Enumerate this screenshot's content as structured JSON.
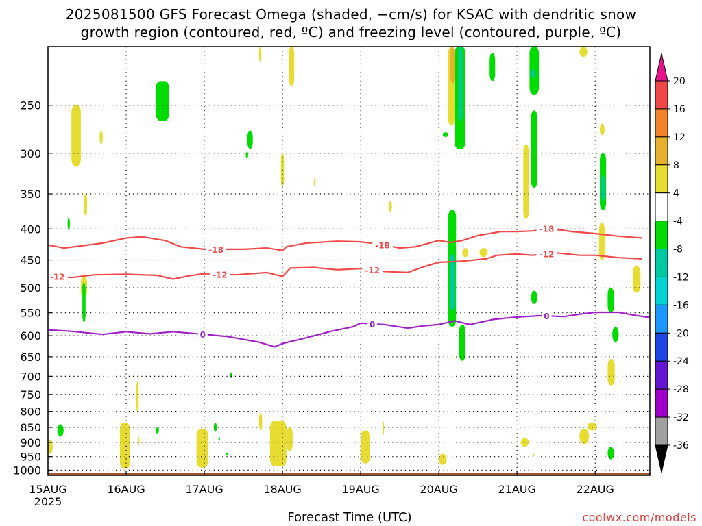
{
  "title": {
    "line1": "2025081500 GFS Forecast Omega (shaded, −cm/s) for KSAC with dendritic snow",
    "line2": "growth region (contoured, red, ºC) and freezing level (contoured, purple, ºC)"
  },
  "xlabel": "Forecast Time (UTC)",
  "credit": "coolwx.com/models",
  "colors": {
    "dgz_contour": "#f04848",
    "freezing_contour": "#a020c8",
    "terrain": "#a0522d",
    "grid": "#000000"
  },
  "chart_data": {
    "type": "heatmap",
    "x_unit": "days since 15AUG 00Z",
    "xlim": [
      0,
      7.7
    ],
    "x_ticks": [
      {
        "value": 0,
        "label": "15AUG",
        "sublabel": "2025"
      },
      {
        "value": 1,
        "label": "16AUG"
      },
      {
        "value": 2,
        "label": "17AUG"
      },
      {
        "value": 3,
        "label": "18AUG"
      },
      {
        "value": 4,
        "label": "19AUG"
      },
      {
        "value": 5,
        "label": "20AUG"
      },
      {
        "value": 6,
        "label": "21AUG"
      },
      {
        "value": 7,
        "label": "22AUG"
      }
    ],
    "y_ticks": [
      250,
      300,
      350,
      400,
      450,
      500,
      550,
      600,
      650,
      700,
      750,
      800,
      850,
      900,
      950,
      1000
    ],
    "ylim_hpa": [
      200,
      1020
    ],
    "y_scale": "log-pressure",
    "grid": true,
    "colorbar": {
      "ticks": [
        20,
        16,
        12,
        8,
        4,
        -4,
        -8,
        -12,
        -16,
        -20,
        -24,
        -28,
        -32,
        -36
      ],
      "bands": [
        {
          "range": [
            16,
            20
          ],
          "color": "#f04848"
        },
        {
          "range": [
            12,
            16
          ],
          "color": "#f08228"
        },
        {
          "range": [
            8,
            12
          ],
          "color": "#e6af2d"
        },
        {
          "range": [
            4,
            8
          ],
          "color": "#e6dc32"
        },
        {
          "range": [
            -4,
            4
          ],
          "color": "#ffffff"
        },
        {
          "range": [
            -8,
            -4
          ],
          "color": "#00dc00"
        },
        {
          "range": [
            -12,
            -8
          ],
          "color": "#00c8a0"
        },
        {
          "range": [
            -16,
            -12
          ],
          "color": "#00d2d2"
        },
        {
          "range": [
            -20,
            -16
          ],
          "color": "#1e96ff"
        },
        {
          "range": [
            -24,
            -20
          ],
          "color": "#1e46e6"
        },
        {
          "range": [
            -28,
            -24
          ],
          "color": "#6414d2"
        },
        {
          "range": [
            -32,
            -28
          ],
          "color": "#a000c8"
        },
        {
          "range": [
            -36,
            -32
          ],
          "color": "#a0a0a0"
        }
      ],
      "top_arrow_color": "#e6148c",
      "bottom_arrow_color": "#000000"
    },
    "contours": [
      {
        "name": "-18",
        "color": "#f04848",
        "points": [
          [
            0,
            425
          ],
          [
            0.2,
            430
          ],
          [
            0.4,
            427
          ],
          [
            0.7,
            422
          ],
          [
            1.0,
            414
          ],
          [
            1.2,
            412
          ],
          [
            1.5,
            418
          ],
          [
            1.7,
            428
          ],
          [
            2.0,
            432
          ],
          [
            2.5,
            432
          ],
          [
            2.8,
            430
          ],
          [
            3.0,
            434
          ],
          [
            3.05,
            428
          ],
          [
            3.3,
            422
          ],
          [
            3.7,
            419
          ],
          [
            4.0,
            420
          ],
          [
            4.2,
            423
          ],
          [
            4.5,
            430
          ],
          [
            4.7,
            428
          ],
          [
            5.0,
            418
          ],
          [
            5.15,
            421
          ],
          [
            5.3,
            418
          ],
          [
            5.5,
            410
          ],
          [
            5.8,
            404
          ],
          [
            6.0,
            404
          ],
          [
            6.2,
            403
          ],
          [
            6.4,
            399
          ],
          [
            6.7,
            404
          ],
          [
            7.0,
            407
          ],
          [
            7.3,
            411
          ],
          [
            7.6,
            414
          ]
        ],
        "labels": [
          [
            2.15,
            "-18"
          ],
          [
            4.28,
            "-18"
          ],
          [
            6.38,
            "-18"
          ]
        ]
      },
      {
        "name": "-12",
        "color": "#f04848",
        "points": [
          [
            0,
            477
          ],
          [
            0.3,
            481
          ],
          [
            0.6,
            476
          ],
          [
            1.0,
            475
          ],
          [
            1.4,
            477
          ],
          [
            1.6,
            484
          ],
          [
            1.8,
            478
          ],
          [
            2.0,
            474
          ],
          [
            2.4,
            476
          ],
          [
            2.8,
            472
          ],
          [
            3.0,
            479
          ],
          [
            3.1,
            464
          ],
          [
            3.4,
            463
          ],
          [
            3.7,
            467
          ],
          [
            4.0,
            465
          ],
          [
            4.3,
            470
          ],
          [
            4.6,
            472
          ],
          [
            4.8,
            462
          ],
          [
            5.0,
            454
          ],
          [
            5.3,
            452
          ],
          [
            5.6,
            448
          ],
          [
            5.75,
            442
          ],
          [
            6.0,
            440
          ],
          [
            6.2,
            442
          ],
          [
            6.5,
            438
          ],
          [
            6.8,
            442
          ],
          [
            7.0,
            442
          ],
          [
            7.3,
            446
          ],
          [
            7.6,
            448
          ]
        ],
        "labels": [
          [
            0.12,
            "-12"
          ],
          [
            2.2,
            "-12"
          ],
          [
            4.15,
            "-12"
          ],
          [
            6.38,
            "-12"
          ]
        ]
      },
      {
        "name": "0",
        "color": "#a020c8",
        "points": [
          [
            0,
            587
          ],
          [
            0.3,
            590
          ],
          [
            0.7,
            597
          ],
          [
            1.0,
            591
          ],
          [
            1.3,
            596
          ],
          [
            1.6,
            591
          ],
          [
            2.0,
            597
          ],
          [
            2.3,
            602
          ],
          [
            2.7,
            615
          ],
          [
            2.9,
            626
          ],
          [
            3.0,
            618
          ],
          [
            3.3,
            605
          ],
          [
            3.6,
            591
          ],
          [
            3.9,
            580
          ],
          [
            4.0,
            572
          ],
          [
            4.3,
            575
          ],
          [
            4.6,
            583
          ],
          [
            4.8,
            578
          ],
          [
            5.0,
            575
          ],
          [
            5.2,
            567
          ],
          [
            5.4,
            575
          ],
          [
            5.7,
            564
          ],
          [
            6.0,
            559
          ],
          [
            6.3,
            556
          ],
          [
            6.6,
            558
          ],
          [
            6.8,
            553
          ],
          [
            7.0,
            549
          ],
          [
            7.3,
            549
          ],
          [
            7.5,
            555
          ],
          [
            7.7,
            560
          ]
        ],
        "labels": [
          [
            1.98,
            "0"
          ],
          [
            4.15,
            "0"
          ],
          [
            6.38,
            "0"
          ]
        ]
      }
    ],
    "shaded_cells": [
      {
        "t": [
          0.3,
          0.42
        ],
        "p": [
          250,
          315
        ],
        "value": 5
      },
      {
        "t": [
          0.42,
          0.5
        ],
        "p": [
          478,
          520
        ],
        "value": 5
      },
      {
        "t": [
          0.46,
          0.5
        ],
        "p": [
          350,
          380
        ],
        "value": 5
      },
      {
        "t": [
          0.66,
          0.7
        ],
        "p": [
          275,
          290
        ],
        "value": 5
      },
      {
        "t": [
          0.44,
          0.48
        ],
        "p": [
          490,
          570
        ],
        "value": -6
      },
      {
        "t": [
          0.25,
          0.28
        ],
        "p": [
          383,
          402
        ],
        "value": -6
      },
      {
        "t": [
          1.38,
          1.55
        ],
        "p": [
          228,
          265
        ],
        "value": -6
      },
      {
        "t": [
          2.55,
          2.62
        ],
        "p": [
          275,
          295
        ],
        "value": -6
      },
      {
        "t": [
          2.53,
          2.56
        ],
        "p": [
          298,
          306
        ],
        "value": -6
      },
      {
        "t": [
          2.7,
          2.73
        ],
        "p": [
          200,
          212
        ],
        "value": 5
      },
      {
        "t": [
          2.98,
          3.02
        ],
        "p": [
          300,
          340
        ],
        "value": 5
      },
      {
        "t": [
          3.08,
          3.15
        ],
        "p": [
          200,
          232
        ],
        "value": 5
      },
      {
        "t": [
          3.4,
          3.42
        ],
        "p": [
          330,
          340
        ],
        "value": 5
      },
      {
        "t": [
          4.36,
          4.4
        ],
        "p": [
          360,
          375
        ],
        "value": 5
      },
      {
        "t": [
          5.12,
          5.2
        ],
        "p": [
          200,
          270
        ],
        "value": 5
      },
      {
        "t": [
          5.15,
          5.2
        ],
        "p": [
          200,
          230
        ],
        "value": 10
      },
      {
        "t": [
          5.05,
          5.12
        ],
        "p": [
          277,
          282
        ],
        "value": -6
      },
      {
        "t": [
          5.2,
          5.34
        ],
        "p": [
          200,
          295
        ],
        "value": -6
      },
      {
        "t": [
          5.25,
          5.3
        ],
        "p": [
          200,
          265
        ],
        "value": -10
      },
      {
        "t": [
          5.12,
          5.22
        ],
        "p": [
          372,
          580
        ],
        "value": -6
      },
      {
        "t": [
          5.14,
          5.2
        ],
        "p": [
          440,
          545
        ],
        "value": -10
      },
      {
        "t": [
          5.26,
          5.34
        ],
        "p": [
          575,
          660
        ],
        "value": -6
      },
      {
        "t": [
          5.3,
          5.38
        ],
        "p": [
          430,
          445
        ],
        "value": 5
      },
      {
        "t": [
          5.52,
          5.62
        ],
        "p": [
          430,
          445
        ],
        "value": 5
      },
      {
        "t": [
          5.65,
          5.72
        ],
        "p": [
          205,
          228
        ],
        "value": -6
      },
      {
        "t": [
          6.08,
          6.15
        ],
        "p": [
          290,
          385
        ],
        "value": 5
      },
      {
        "t": [
          6.16,
          6.28
        ],
        "p": [
          200,
          240
        ],
        "value": -6
      },
      {
        "t": [
          6.18,
          6.26
        ],
        "p": [
          255,
          342
        ],
        "value": -6
      },
      {
        "t": [
          6.18,
          6.23
        ],
        "p": [
          218,
          225
        ],
        "value": -10
      },
      {
        "t": [
          6.18,
          6.26
        ],
        "p": [
          506,
          532
        ],
        "value": -6
      },
      {
        "t": [
          7.06,
          7.12
        ],
        "p": [
          268,
          280
        ],
        "value": 5
      },
      {
        "t": [
          7.06,
          7.14
        ],
        "p": [
          300,
          372
        ],
        "value": -6
      },
      {
        "t": [
          7.08,
          7.12
        ],
        "p": [
          325,
          360
        ],
        "value": -10
      },
      {
        "t": [
          7.05,
          7.12
        ],
        "p": [
          390,
          450
        ],
        "value": 5
      },
      {
        "t": [
          7.16,
          7.24
        ],
        "p": [
          500,
          550
        ],
        "value": -6
      },
      {
        "t": [
          7.22,
          7.3
        ],
        "p": [
          580,
          615
        ],
        "value": -6
      },
      {
        "t": [
          7.16,
          7.25
        ],
        "p": [
          655,
          725
        ],
        "value": 5
      },
      {
        "t": [
          7.48,
          7.58
        ],
        "p": [
          460,
          510
        ],
        "value": 5
      },
      {
        "t": [
          6.8,
          6.9
        ],
        "p": [
          200,
          208
        ],
        "value": 5
      },
      {
        "t": [
          2.33,
          2.36
        ],
        "p": [
          690,
          705
        ],
        "value": -6
      },
      {
        "t": [
          1.13,
          1.16
        ],
        "p": [
          715,
          800
        ],
        "value": 5
      },
      {
        "t": [
          0.12,
          0.2
        ],
        "p": [
          840,
          880
        ],
        "value": -6
      },
      {
        "t": [
          0.0,
          0.06
        ],
        "p": [
          890,
          940
        ],
        "value": 5
      },
      {
        "t": [
          0.92,
          1.05
        ],
        "p": [
          835,
          995
        ],
        "value": 5
      },
      {
        "t": [
          1.15,
          1.17
        ],
        "p": [
          880,
          910
        ],
        "value": 5
      },
      {
        "t": [
          1.38,
          1.42
        ],
        "p": [
          850,
          870
        ],
        "value": -6
      },
      {
        "t": [
          1.9,
          2.05
        ],
        "p": [
          855,
          990
        ],
        "value": 5
      },
      {
        "t": [
          2.12,
          2.16
        ],
        "p": [
          835,
          865
        ],
        "value": -6
      },
      {
        "t": [
          2.18,
          2.2
        ],
        "p": [
          880,
          895
        ],
        "value": -6
      },
      {
        "t": [
          2.28,
          2.3
        ],
        "p": [
          935,
          945
        ],
        "value": -6
      },
      {
        "t": [
          2.7,
          2.74
        ],
        "p": [
          805,
          860
        ],
        "value": 5
      },
      {
        "t": [
          2.84,
          3.05
        ],
        "p": [
          830,
          985
        ],
        "value": 5
      },
      {
        "t": [
          3.05,
          3.13
        ],
        "p": [
          850,
          930
        ],
        "value": 5
      },
      {
        "t": [
          4.0,
          4.12
        ],
        "p": [
          860,
          975
        ],
        "value": 5
      },
      {
        "t": [
          4.28,
          4.3
        ],
        "p": [
          830,
          875
        ],
        "value": 5
      },
      {
        "t": [
          5.0,
          5.1
        ],
        "p": [
          940,
          980
        ],
        "value": 5
      },
      {
        "t": [
          6.05,
          6.15
        ],
        "p": [
          885,
          915
        ],
        "value": 5
      },
      {
        "t": [
          6.2,
          6.22
        ],
        "p": [
          940,
          950
        ],
        "value": 5
      },
      {
        "t": [
          6.8,
          6.92
        ],
        "p": [
          855,
          905
        ],
        "value": 5
      },
      {
        "t": [
          6.9,
          7.02
        ],
        "p": [
          835,
          860
        ],
        "value": 5
      },
      {
        "t": [
          7.16,
          7.24
        ],
        "p": [
          915,
          960
        ],
        "value": -6
      }
    ],
    "terrain": {
      "top_hpa": 1010,
      "color": "#a0522d"
    }
  }
}
